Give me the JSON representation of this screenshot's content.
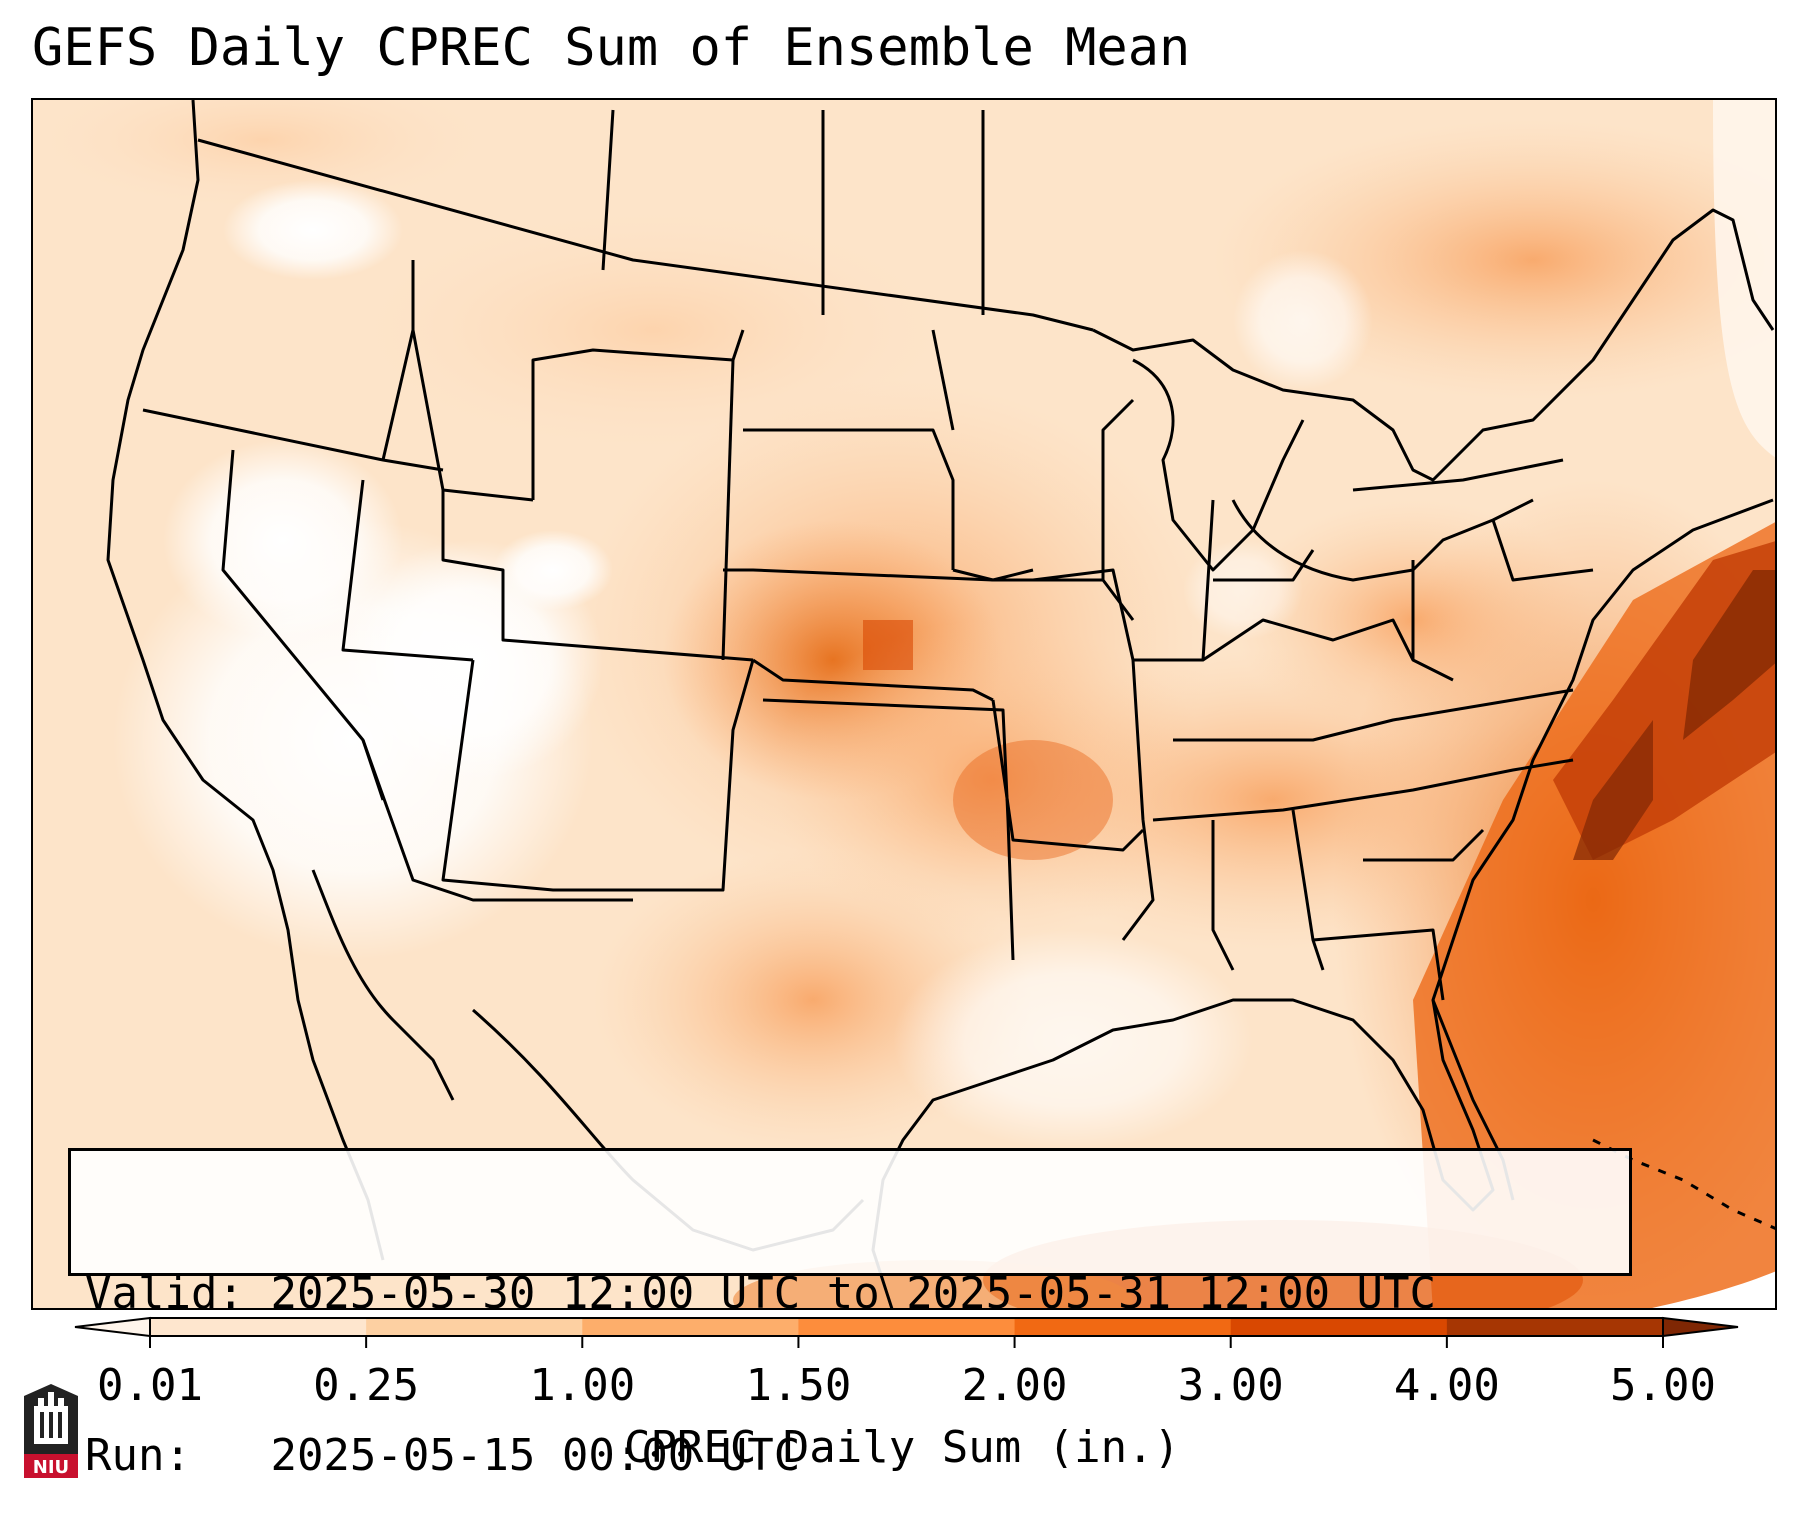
{
  "title": "GEFS Daily CPREC Sum of Ensemble Mean",
  "info": {
    "valid_label": "Valid:",
    "valid_value": "2025-05-30 12:00 UTC to 2025-05-31 12:00 UTC",
    "run_label": "Run:",
    "run_value": "2025-05-15 00:00 UTC"
  },
  "colorbar": {
    "label": "CPREC Daily Sum (in.)",
    "ticks": [
      "0.01",
      "0.25",
      "1.00",
      "1.50",
      "2.00",
      "3.00",
      "4.00",
      "5.00"
    ],
    "colors": [
      "#fff5eb",
      "#fee6ce",
      "#fdd0a2",
      "#fdae6b",
      "#fd8d3c",
      "#f16913",
      "#d94801",
      "#a63603",
      "#7f2704"
    ],
    "extend": "both"
  },
  "logo": {
    "text": "NIU",
    "icon": "niu-castle-icon"
  },
  "map": {
    "region": "CONUS",
    "basemap_icon": "state-borders-map"
  }
}
